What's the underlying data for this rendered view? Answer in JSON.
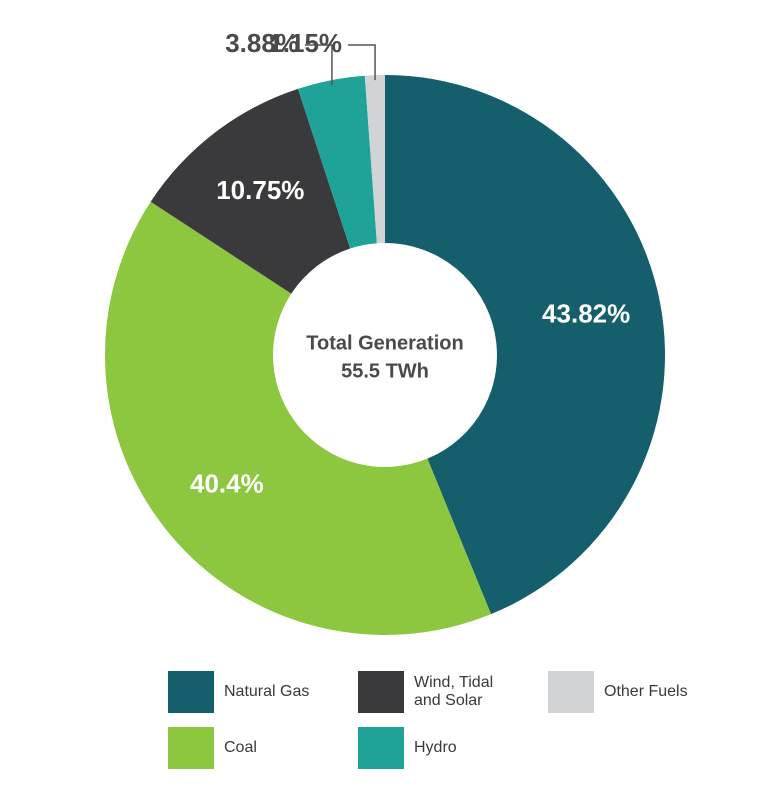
{
  "chart_data": {
    "type": "donut",
    "center_text": [
      "Total Generation",
      "55.5 TWh"
    ],
    "categories": [
      "Natural Gas",
      "Coal",
      "Wind, Tidal and Solar",
      "Hydro",
      "Other Fuels"
    ],
    "values": [
      43.82,
      40.4,
      10.75,
      3.88,
      1.15
    ],
    "value_labels": [
      "43.82%",
      "40.4%",
      "10.75%",
      "3.88%",
      "1.15%"
    ],
    "colors": [
      "#145f6b",
      "#8dc63f",
      "#3a3a3c",
      "#1fa398",
      "#d1d3d4"
    ]
  }
}
